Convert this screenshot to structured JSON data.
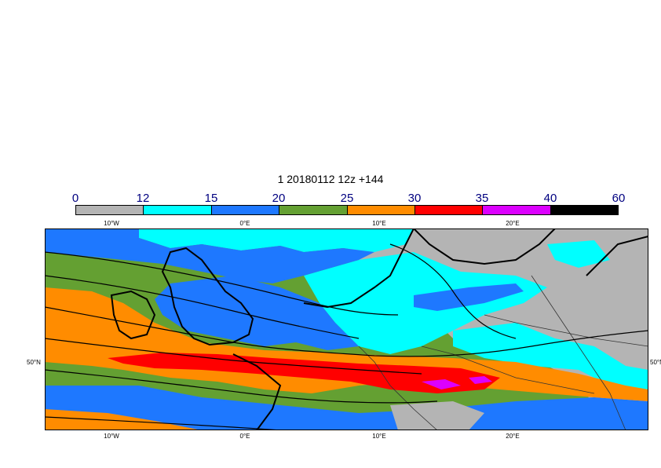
{
  "title": "1 20180112 12z +144",
  "colorbar": {
    "labels": [
      "0",
      "12",
      "15",
      "20",
      "25",
      "30",
      "35",
      "40",
      "60"
    ],
    "colors": [
      "#b4b4b4",
      "#00ffff",
      "#1e78ff",
      "#64a032",
      "#ff8c00",
      "#ff0000",
      "#dc00ff",
      "#000000"
    ]
  },
  "axes": {
    "top_lon_labels": [
      "10°W",
      "0°E",
      "10°E",
      "20°E"
    ],
    "bottom_lon_labels": [
      "10°W",
      "0°E",
      "10°E",
      "20°E"
    ],
    "lat_left": "50°N",
    "lat_right": "50°N"
  }
}
